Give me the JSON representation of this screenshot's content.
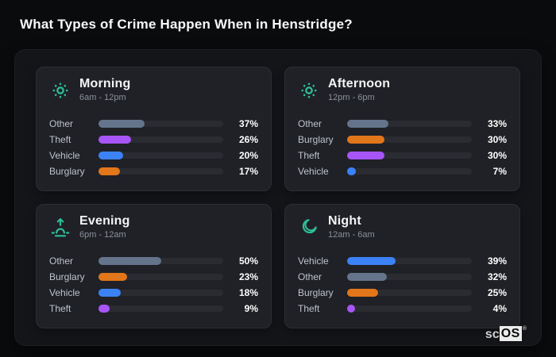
{
  "page": {
    "title": "What Types of Crime Happen When in Henstridge?"
  },
  "brand": {
    "prefix": "sc",
    "boxed": "OS",
    "registered": "®"
  },
  "colors": {
    "page_bg": "#0a0b0d",
    "container_bg": "#141519",
    "panel_bg": "#1f2126",
    "bar_track": "#2a2c32",
    "icon_accent": "#2ebd96",
    "categories": {
      "Other": "#64748b",
      "Theft": "#a855f7",
      "Vehicle": "#3b82f6",
      "Burglary": "#e2761a"
    }
  },
  "chart_data": [
    {
      "id": "morning",
      "type": "bar",
      "orientation": "horizontal",
      "title": "Morning",
      "subtitle": "6am - 12pm",
      "icon": "sun-icon",
      "unit": "%",
      "xlim": [
        0,
        100
      ],
      "categories": [
        "Other",
        "Theft",
        "Vehicle",
        "Burglary"
      ],
      "values": [
        37,
        26,
        20,
        17
      ]
    },
    {
      "id": "afternoon",
      "type": "bar",
      "orientation": "horizontal",
      "title": "Afternoon",
      "subtitle": "12pm - 6pm",
      "icon": "sun-icon",
      "unit": "%",
      "xlim": [
        0,
        100
      ],
      "categories": [
        "Other",
        "Burglary",
        "Theft",
        "Vehicle"
      ],
      "values": [
        33,
        30,
        30,
        7
      ]
    },
    {
      "id": "evening",
      "type": "bar",
      "orientation": "horizontal",
      "title": "Evening",
      "subtitle": "6pm - 12am",
      "icon": "sunrise-icon",
      "unit": "%",
      "xlim": [
        0,
        100
      ],
      "categories": [
        "Other",
        "Burglary",
        "Vehicle",
        "Theft"
      ],
      "values": [
        50,
        23,
        18,
        9
      ]
    },
    {
      "id": "night",
      "type": "bar",
      "orientation": "horizontal",
      "title": "Night",
      "subtitle": "12am - 6am",
      "icon": "moon-icon",
      "unit": "%",
      "xlim": [
        0,
        100
      ],
      "categories": [
        "Vehicle",
        "Other",
        "Burglary",
        "Theft"
      ],
      "values": [
        39,
        32,
        25,
        4
      ]
    }
  ]
}
